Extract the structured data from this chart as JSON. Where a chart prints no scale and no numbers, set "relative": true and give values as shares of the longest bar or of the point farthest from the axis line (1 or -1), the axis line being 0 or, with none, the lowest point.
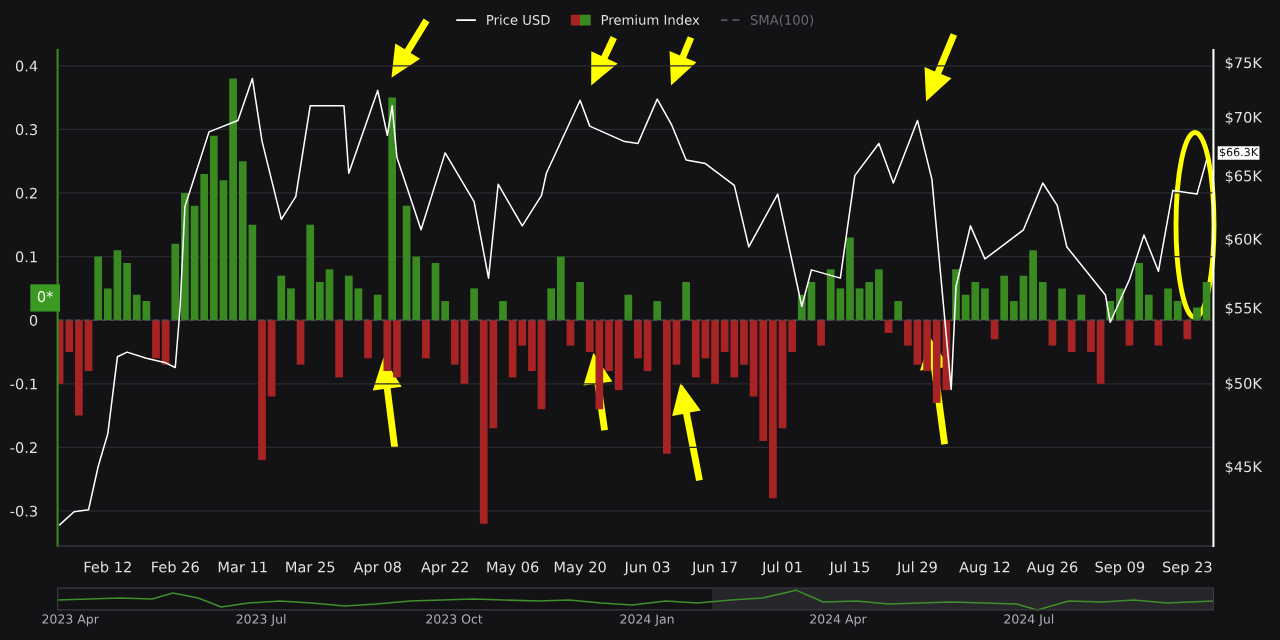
{
  "chart_data": [
    {
      "type": "bar",
      "xlim": [
        "2024-02-01T14:00",
        "2024-09-28T10:00"
      ],
      "xticks": [
        {
          "value": "2024-02-12",
          "label": "Feb 12"
        },
        {
          "value": "2024-02-26",
          "label": "Feb 26"
        },
        {
          "value": "2024-03-11",
          "label": "Mar 11"
        },
        {
          "value": "2024-03-25",
          "label": "Mar 25"
        },
        {
          "value": "2024-04-08",
          "label": "Apr 08"
        },
        {
          "value": "2024-04-22",
          "label": "Apr 22"
        },
        {
          "value": "2024-05-06",
          "label": "May 06"
        },
        {
          "value": "2024-05-20",
          "label": "May 20"
        },
        {
          "value": "2024-06-03",
          "label": "Jun 03"
        },
        {
          "value": "2024-06-17",
          "label": "Jun 17"
        },
        {
          "value": "2024-07-01",
          "label": "Jul 01"
        },
        {
          "value": "2024-07-15",
          "label": "Jul 15"
        },
        {
          "value": "2024-07-29",
          "label": "Jul 29"
        },
        {
          "value": "2024-08-12",
          "label": "Aug 12"
        },
        {
          "value": "2024-08-26",
          "label": "Aug 26"
        },
        {
          "value": "2024-09-09",
          "label": "Sep 09"
        },
        {
          "value": "2024-09-23",
          "label": "Sep 23"
        }
      ],
      "ylim": [
        -0.355,
        0.425
      ],
      "yticks": [
        {
          "value": -0.3,
          "label": "-0.3"
        },
        {
          "value": -0.2,
          "label": "-0.2"
        },
        {
          "value": -0.1,
          "label": "-0.1"
        },
        0,
        0.1,
        0.2,
        0.3,
        0.4
      ],
      "log": "y2",
      "y2lim": [
        40700,
        76200
      ],
      "y2ticks": [
        {
          "value": 45000,
          "label": "$45K"
        },
        {
          "value": 50000,
          "label": "$50K"
        },
        {
          "value": 55000,
          "label": "$55K"
        },
        {
          "value": 60000,
          "label": "$60K"
        },
        {
          "value": 65000,
          "label": "$65K"
        },
        {
          "value": 70000,
          "label": "$70K"
        },
        {
          "value": 75000,
          "label": "$75K"
        }
      ],
      "grid": "y",
      "legend": "top",
      "ref_lines": [
        {
          "axis": "y",
          "value": 0,
          "color": "#55555c",
          "line_style": "dashed"
        }
      ],
      "annotations": [
        "$66.3K",
        "0*"
      ],
      "series": [
        {
          "name": "Premium Index",
          "type": "bar",
          "axis": "y",
          "x": [
            "2024-02-02",
            "2024-02-04",
            "2024-02-06",
            "2024-02-08",
            "2024-02-10",
            "2024-02-12",
            "2024-02-14",
            "2024-02-16",
            "2024-02-18",
            "2024-02-20",
            "2024-02-22",
            "2024-02-24",
            "2024-02-26",
            "2024-02-28",
            "2024-03-01",
            "2024-03-03",
            "2024-03-05",
            "2024-03-07",
            "2024-03-09",
            "2024-03-11",
            "2024-03-13",
            "2024-03-15",
            "2024-03-17",
            "2024-03-19",
            "2024-03-21",
            "2024-03-23",
            "2024-03-25",
            "2024-03-27",
            "2024-03-29",
            "2024-03-31",
            "2024-04-02",
            "2024-04-04",
            "2024-04-06",
            "2024-04-08",
            "2024-04-10",
            "2024-04-11",
            "2024-04-12",
            "2024-04-14",
            "2024-04-16",
            "2024-04-18",
            "2024-04-20",
            "2024-04-22",
            "2024-04-24",
            "2024-04-26",
            "2024-04-28",
            "2024-04-30",
            "2024-05-02",
            "2024-05-04",
            "2024-05-06",
            "2024-05-08",
            "2024-05-10",
            "2024-05-12",
            "2024-05-14",
            "2024-05-16",
            "2024-05-18",
            "2024-05-20",
            "2024-05-22",
            "2024-05-24",
            "2024-05-26",
            "2024-05-28",
            "2024-05-30",
            "2024-06-01",
            "2024-06-03",
            "2024-06-05",
            "2024-06-07",
            "2024-06-09",
            "2024-06-11",
            "2024-06-13",
            "2024-06-15",
            "2024-06-17",
            "2024-06-19",
            "2024-06-21",
            "2024-06-23",
            "2024-06-25",
            "2024-06-27",
            "2024-06-29",
            "2024-07-01",
            "2024-07-03",
            "2024-07-05",
            "2024-07-07",
            "2024-07-09",
            "2024-07-11",
            "2024-07-13",
            "2024-07-15",
            "2024-07-17",
            "2024-07-19",
            "2024-07-21",
            "2024-07-23",
            "2024-07-25",
            "2024-07-27",
            "2024-07-29",
            "2024-07-31",
            "2024-08-02",
            "2024-08-04",
            "2024-08-06",
            "2024-08-08",
            "2024-08-10",
            "2024-08-12",
            "2024-08-14",
            "2024-08-16",
            "2024-08-18",
            "2024-08-20",
            "2024-08-22",
            "2024-08-24",
            "2024-08-26",
            "2024-08-28",
            "2024-08-30",
            "2024-09-01",
            "2024-09-03",
            "2024-09-05",
            "2024-09-07",
            "2024-09-09",
            "2024-09-11",
            "2024-09-13",
            "2024-09-15",
            "2024-09-17",
            "2024-09-19",
            "2024-09-21",
            "2024-09-23",
            "2024-09-25",
            "2024-09-27"
          ],
          "values": [
            -0.1,
            -0.05,
            -0.15,
            -0.08,
            0.1,
            0.05,
            0.11,
            0.09,
            0.04,
            0.03,
            -0.06,
            -0.07,
            0.12,
            0.2,
            0.18,
            0.23,
            0.29,
            0.22,
            0.38,
            0.25,
            0.15,
            -0.22,
            -0.12,
            0.07,
            0.05,
            -0.07,
            0.15,
            0.06,
            0.08,
            -0.09,
            0.07,
            0.05,
            -0.06,
            0.04,
            -0.08,
            0.35,
            -0.09,
            0.18,
            0.1,
            -0.06,
            0.09,
            0.03,
            -0.07,
            -0.1,
            0.05,
            -0.32,
            -0.17,
            0.03,
            -0.09,
            -0.04,
            -0.08,
            -0.14,
            0.05,
            0.1,
            -0.04,
            0.06,
            -0.05,
            -0.14,
            -0.08,
            -0.11,
            0.04,
            -0.06,
            -0.08,
            0.03,
            -0.21,
            -0.07,
            0.06,
            -0.09,
            -0.06,
            -0.1,
            -0.05,
            -0.09,
            -0.07,
            -0.12,
            -0.19,
            -0.28,
            -0.17,
            -0.05,
            0.04,
            0.06,
            -0.04,
            0.08,
            0.05,
            0.13,
            0.05,
            0.06,
            0.08,
            -0.02,
            0.03,
            -0.04,
            -0.07,
            -0.08,
            -0.13,
            -0.11,
            0.08,
            0.04,
            0.06,
            0.05,
            -0.03,
            0.07,
            0.03,
            0.07,
            0.11,
            0.06,
            -0.04,
            0.05,
            -0.05,
            0.04,
            -0.05,
            -0.1,
            0.03,
            0.05,
            -0.04,
            0.09,
            0.04,
            -0.04,
            0.05,
            0.03,
            -0.03,
            0.02,
            0.06
          ],
          "colors": [
            "#a82424",
            "#a82424",
            "#a82424",
            "#a82424",
            "#3a8a22",
            "#3a8a22",
            "#3a8a22",
            "#3a8a22",
            "#3a8a22",
            "#3a8a22",
            "#a82424",
            "#a82424",
            "#3a8a22",
            "#3a8a22",
            "#3a8a22",
            "#3a8a22",
            "#3a8a22",
            "#3a8a22",
            "#3a8a22",
            "#3a8a22",
            "#3a8a22",
            "#a82424",
            "#a82424",
            "#3a8a22",
            "#3a8a22",
            "#a82424",
            "#3a8a22",
            "#3a8a22",
            "#3a8a22",
            "#a82424",
            "#3a8a22",
            "#3a8a22",
            "#a82424",
            "#3a8a22",
            "#a82424",
            "#3a8a22",
            "#a82424",
            "#3a8a22",
            "#3a8a22",
            "#a82424",
            "#3a8a22",
            "#3a8a22",
            "#a82424",
            "#a82424",
            "#3a8a22",
            "#a82424",
            "#a82424",
            "#3a8a22",
            "#a82424",
            "#a82424",
            "#a82424",
            "#a82424",
            "#3a8a22",
            "#3a8a22",
            "#a82424",
            "#3a8a22",
            "#a82424",
            "#a82424",
            "#a82424",
            "#a82424",
            "#3a8a22",
            "#a82424",
            "#a82424",
            "#3a8a22",
            "#a82424",
            "#a82424",
            "#3a8a22",
            "#a82424",
            "#a82424",
            "#a82424",
            "#a82424",
            "#a82424",
            "#a82424",
            "#a82424",
            "#a82424",
            "#a82424",
            "#a82424",
            "#a82424",
            "#3a8a22",
            "#3a8a22",
            "#a82424",
            "#3a8a22",
            "#3a8a22",
            "#3a8a22",
            "#3a8a22",
            "#3a8a22",
            "#3a8a22",
            "#a82424",
            "#3a8a22",
            "#a82424",
            "#a82424",
            "#a82424",
            "#a82424",
            "#a82424",
            "#3a8a22",
            "#3a8a22",
            "#3a8a22",
            "#3a8a22",
            "#a82424",
            "#3a8a22",
            "#3a8a22",
            "#3a8a22",
            "#3a8a22",
            "#3a8a22",
            "#a82424",
            "#3a8a22",
            "#a82424",
            "#3a8a22",
            "#a82424",
            "#a82424",
            "#3a8a22",
            "#3a8a22",
            "#a82424",
            "#3a8a22",
            "#3a8a22",
            "#a82424",
            "#3a8a22",
            "#3a8a22",
            "#a82424",
            "#3a8a22",
            "#3a8a22"
          ]
        },
        {
          "name": "Price USD",
          "type": "line",
          "axis": "y2",
          "color": "#ffffff",
          "x": [
            "2024-02-02",
            "2024-02-05",
            "2024-02-08",
            "2024-02-10",
            "2024-02-12",
            "2024-02-14",
            "2024-02-16",
            "2024-02-20",
            "2024-02-24",
            "2024-02-26",
            "2024-02-27",
            "2024-02-28",
            "2024-03-04",
            "2024-03-10",
            "2024-03-13",
            "2024-03-15",
            "2024-03-19",
            "2024-03-22",
            "2024-03-25",
            "2024-04-01",
            "2024-04-02",
            "2024-04-08",
            "2024-04-10",
            "2024-04-11",
            "2024-04-12",
            "2024-04-17",
            "2024-04-22",
            "2024-04-28",
            "2024-05-01",
            "2024-05-03",
            "2024-05-08",
            "2024-05-12",
            "2024-05-13",
            "2024-05-20",
            "2024-05-22",
            "2024-05-29",
            "2024-06-01",
            "2024-06-05",
            "2024-06-08",
            "2024-06-11",
            "2024-06-15",
            "2024-06-21",
            "2024-06-24",
            "2024-06-30",
            "2024-07-05",
            "2024-07-07",
            "2024-07-13",
            "2024-07-16",
            "2024-07-21",
            "2024-07-24",
            "2024-07-29",
            "2024-08-01",
            "2024-08-05",
            "2024-08-06",
            "2024-08-09",
            "2024-08-12",
            "2024-08-20",
            "2024-08-24",
            "2024-08-27",
            "2024-08-29",
            "2024-09-06",
            "2024-09-07",
            "2024-09-11",
            "2024-09-14",
            "2024-09-17",
            "2024-09-20",
            "2024-09-25",
            "2024-09-27"
          ],
          "values": [
            41800,
            42500,
            42600,
            45000,
            46900,
            51700,
            52000,
            51600,
            51300,
            51000,
            55000,
            62500,
            68700,
            69700,
            73500,
            67900,
            61500,
            63300,
            71000,
            71000,
            65200,
            72400,
            68400,
            71000,
            66500,
            60700,
            66900,
            62900,
            57100,
            64300,
            61000,
            63400,
            65200,
            71500,
            69200,
            67900,
            67700,
            71600,
            69300,
            66300,
            66000,
            64200,
            59400,
            63500,
            55100,
            57700,
            57100,
            65000,
            67700,
            64400,
            69700,
            64700,
            49600,
            56500,
            61000,
            58500,
            60700,
            64400,
            62600,
            59400,
            55900,
            54000,
            57000,
            60300,
            57600,
            63800,
            63500,
            66300
          ]
        },
        {
          "name": "SMA(100)",
          "type": "line",
          "axis": "y",
          "color": "#55555c",
          "line_style": "dashed"
        }
      ]
    },
    {
      "type": "line",
      "relative": true,
      "tick_labels": "x",
      "xlim": [
        "2023-03-26",
        "2024-09-27"
      ],
      "xticks": [
        {
          "value": "2023-04-01",
          "label": "2023 Apr"
        },
        {
          "value": "2023-07-01",
          "label": "2023 Jul"
        },
        {
          "value": "2023-10-01",
          "label": "2023 Oct"
        },
        {
          "value": "2024-01-01",
          "label": "2024 Jan"
        },
        {
          "value": "2024-04-01",
          "label": "2024 Apr"
        },
        {
          "value": "2024-07-01",
          "label": "2024 Jul"
        }
      ],
      "bands": [
        {
          "axis": "x",
          "from": "2024-02-01",
          "to": "2024-09-27",
          "color": "#26262b"
        }
      ],
      "series": [
        {
          "color": "#3f8f2a",
          "x": [
            "2023-03-26",
            "2023-04-10",
            "2023-04-25",
            "2023-05-10",
            "2023-05-20",
            "2023-06-01",
            "2023-06-12",
            "2023-06-25",
            "2023-07-10",
            "2023-07-25",
            "2023-08-10",
            "2023-08-25",
            "2023-09-10",
            "2023-09-25",
            "2023-10-10",
            "2023-10-25",
            "2023-11-10",
            "2023-11-25",
            "2023-12-10",
            "2023-12-25",
            "2024-01-10",
            "2024-01-25",
            "2024-02-10",
            "2024-02-25",
            "2024-03-12",
            "2024-03-25",
            "2024-04-10",
            "2024-04-25",
            "2024-05-10",
            "2024-05-25",
            "2024-06-10",
            "2024-06-25",
            "2024-07-05",
            "2024-07-20",
            "2024-08-05",
            "2024-08-20",
            "2024-09-05",
            "2024-09-27"
          ],
          "values": [
            0.5,
            0.55,
            0.6,
            0.55,
            0.85,
            0.6,
            0.15,
            0.35,
            0.45,
            0.35,
            0.2,
            0.3,
            0.45,
            0.5,
            0.55,
            0.5,
            0.45,
            0.5,
            0.35,
            0.25,
            0.45,
            0.35,
            0.5,
            0.6,
            1,
            0.4,
            0.45,
            0.3,
            0.35,
            0.4,
            0.35,
            0.3,
            0,
            0.45,
            0.4,
            0.5,
            0.35,
            0.45
          ]
        }
      ]
    }
  ]
}
